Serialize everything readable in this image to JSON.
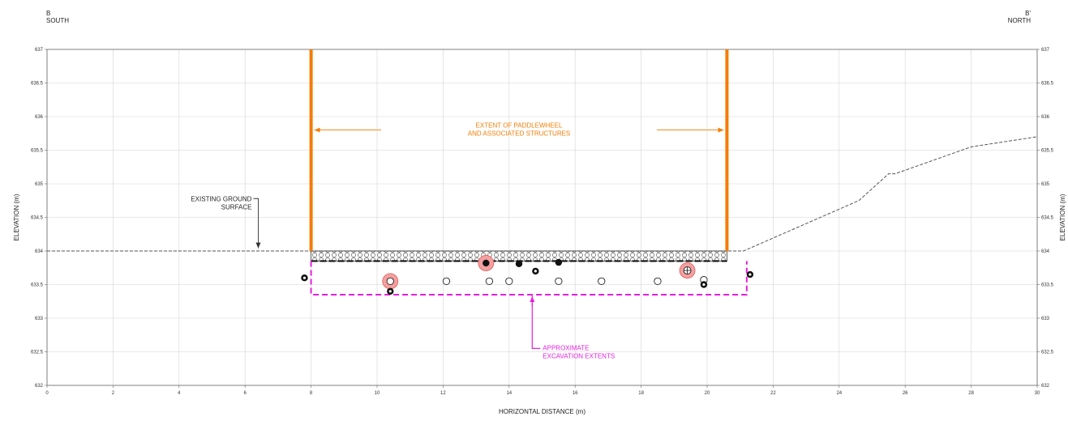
{
  "section": {
    "left_marker": "B",
    "left_direction": "SOUTH",
    "right_marker": "B'",
    "right_direction": "NORTH"
  },
  "axes": {
    "xlabel": "HORIZONTAL DISTANCE (m)",
    "ylabel_left": "ELEVATION (m)",
    "ylabel_right": "ELEVATION (m)",
    "xlim": [
      0,
      30
    ],
    "ylim": [
      632,
      637
    ],
    "x_ticks": [
      "0",
      "2",
      "4",
      "6",
      "8",
      "10",
      "12",
      "14",
      "16",
      "18",
      "20",
      "22",
      "24",
      "26",
      "28",
      "30"
    ],
    "y_ticks": [
      "632",
      "632.5",
      "633",
      "633.5",
      "634",
      "634.5",
      "635",
      "635.5",
      "636",
      "636.5",
      "637"
    ]
  },
  "annotations": {
    "ground_line1": "EXISTING GROUND",
    "ground_line2": "SURFACE",
    "extent_line1": "EXTENT OF PADDLEWHEEL",
    "extent_line2": "AND ASSOCIATED STRUCTURES",
    "excav_line1": "APPROXIMATE",
    "excav_line2": "EXCAVATION EXTENTS"
  },
  "colors": {
    "structure": "#f57c00",
    "excavation": "#e91ee0",
    "ground": "#555555",
    "grid": "#d4d4d4",
    "highlight": "#f4a0a0"
  },
  "geometry": {
    "structure_x": [
      8.0,
      20.6
    ],
    "fill_layer_elev": [
      633.85,
      634.0
    ],
    "excavation_x": [
      8.0,
      21.2
    ],
    "excavation_bottom": 633.35,
    "ground_profile": [
      [
        0,
        634.0
      ],
      [
        8.0,
        634.0
      ],
      [
        20.6,
        634.0
      ],
      [
        21.1,
        634.0
      ],
      [
        24.6,
        634.75
      ],
      [
        25.5,
        635.15
      ],
      [
        25.7,
        635.15
      ],
      [
        28.0,
        635.55
      ],
      [
        30.0,
        635.7
      ]
    ],
    "samples_open": [
      [
        10.4,
        633.55
      ],
      [
        12.1,
        633.55
      ],
      [
        13.4,
        633.55
      ],
      [
        14.0,
        633.55
      ],
      [
        15.5,
        633.55
      ],
      [
        16.8,
        633.55
      ],
      [
        18.5,
        633.55
      ],
      [
        19.9,
        633.57
      ]
    ],
    "samples_filled": [
      [
        13.3,
        633.82
      ],
      [
        14.3,
        633.81
      ],
      [
        15.5,
        633.83
      ]
    ],
    "samples_target": [
      [
        7.8,
        633.6
      ],
      [
        10.4,
        633.4
      ],
      [
        14.8,
        633.7
      ],
      [
        19.9,
        633.5
      ],
      [
        21.3,
        633.65
      ]
    ],
    "samples_cross": [
      [
        19.4,
        633.71
      ]
    ],
    "highlights": [
      [
        10.4,
        633.55
      ],
      [
        13.3,
        633.82
      ],
      [
        19.4,
        633.71
      ]
    ]
  }
}
